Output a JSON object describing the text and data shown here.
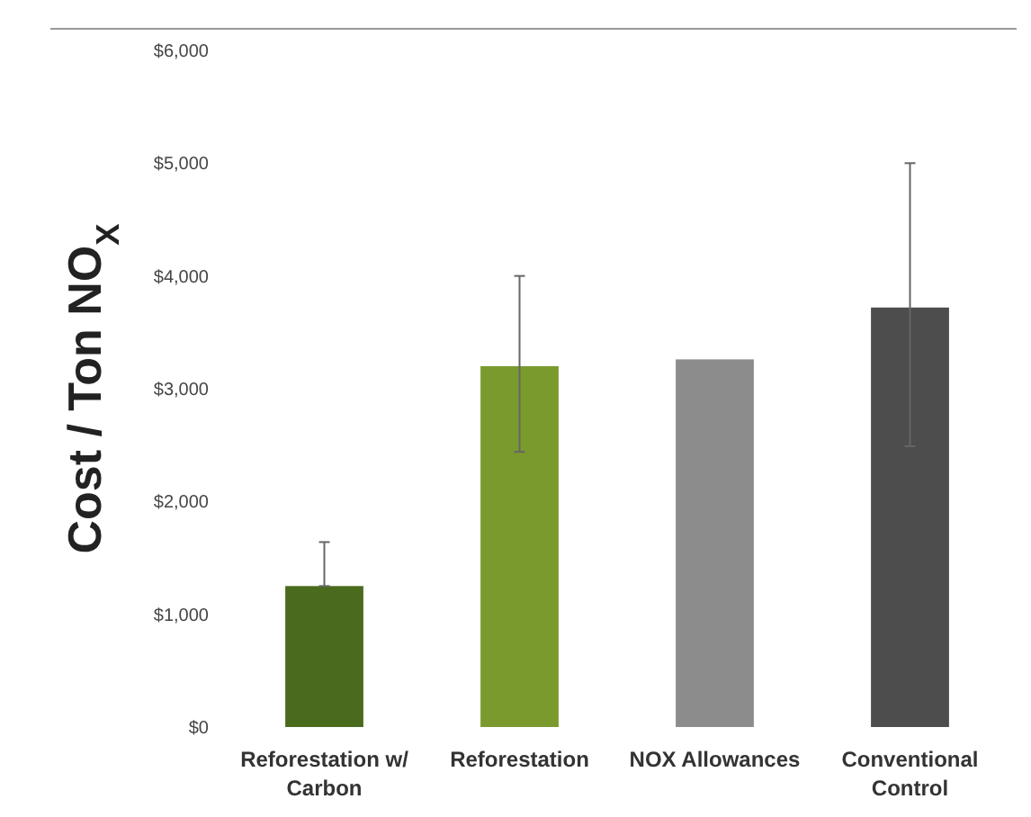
{
  "chart_data": {
    "type": "bar",
    "ylabel": "Cost / Ton NO$_{X}$",
    "categories": [
      "Reforestation w/ Carbon",
      "Reforestation",
      "NOX Allowances",
      "Conventional Control"
    ],
    "values": [
      1250,
      3200,
      3260,
      3720
    ],
    "colors": [
      "#4a6b1e",
      "#7a9a2e",
      "#8c8c8c",
      "#4d4d4d"
    ],
    "errors": [
      [
        1250,
        1640
      ],
      [
        2440,
        4000
      ],
      null,
      [
        2490,
        5000
      ]
    ],
    "ylim": [
      0,
      6000
    ],
    "yticks": [
      {
        "value": 0,
        "label": "$0"
      },
      {
        "value": 1000,
        "label": "$1,000"
      },
      {
        "value": 2000,
        "label": "$2,000"
      },
      {
        "value": 3000,
        "label": "$3,000"
      },
      {
        "value": 4000,
        "label": "$4,000"
      },
      {
        "value": 5000,
        "label": "$5,000"
      },
      {
        "value": 6000,
        "label": "$6,000"
      }
    ]
  }
}
